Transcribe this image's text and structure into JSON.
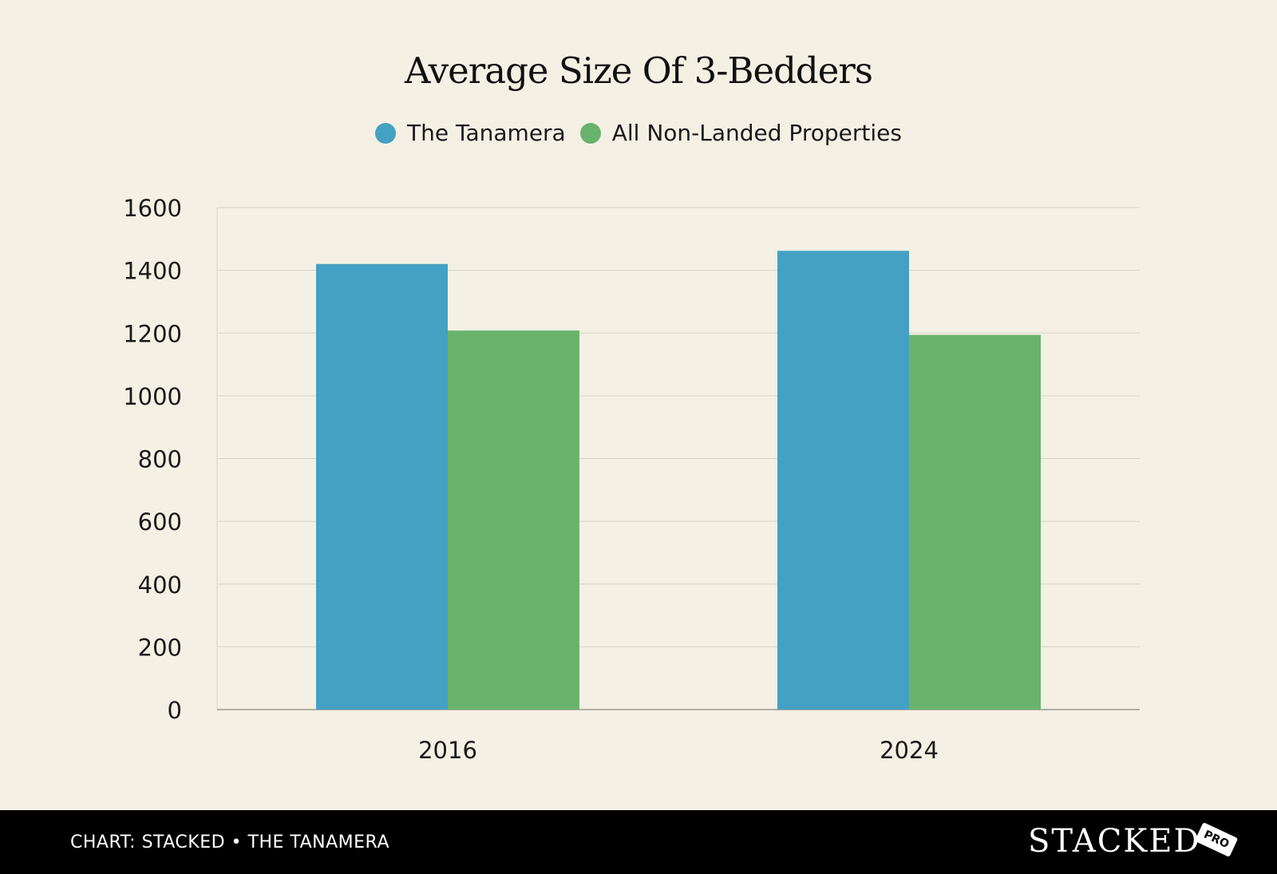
{
  "colors": {
    "background": "#f4f0e4",
    "tanamera": "#44a1c3",
    "non_landed": "#69b36e",
    "footer": "#000000"
  },
  "footer": {
    "source": "CHART: STACKED • THE TANAMERA",
    "brand": "STACKED",
    "badge": "PRO"
  },
  "chart_data": {
    "type": "bar",
    "title": "Average Size Of 3-Bedders",
    "categories": [
      "2016",
      "2024"
    ],
    "series": [
      {
        "name": "The Tanamera",
        "values": [
          1420,
          1462
        ],
        "color": "#44a1c3"
      },
      {
        "name": "All Non-Landed Properties",
        "values": [
          1208,
          1194
        ],
        "color": "#69b36e"
      }
    ],
    "yticks": [
      0,
      200,
      400,
      600,
      800,
      1000,
      1200,
      1400,
      1600
    ],
    "ylim": [
      0,
      1600
    ],
    "xlabel": "",
    "ylabel": "",
    "grid": true,
    "legend_position": "top"
  }
}
